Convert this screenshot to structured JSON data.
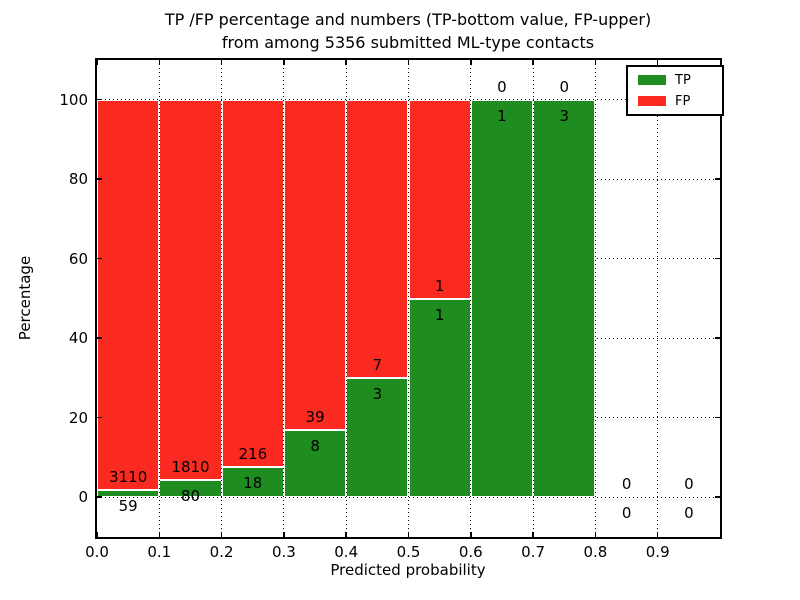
{
  "title": {
    "line1": "TP /FP percentage and numbers (TP-bottom value, FP-upper)",
    "line2": "from among 5356 submitted ML-type contacts"
  },
  "chart_data": {
    "type": "bar",
    "stacked": true,
    "title": "TP /FP percentage and numbers (TP-bottom value, FP-upper) from among 5356 submitted ML-type contacts",
    "xlabel": "Predicted probability",
    "ylabel": "Percentage",
    "xlim": [
      0.0,
      1.0
    ],
    "ylim": [
      -10,
      110
    ],
    "x_tick_labels": [
      "0.0",
      "0.1",
      "0.2",
      "0.3",
      "0.4",
      "0.5",
      "0.6",
      "0.7",
      "0.8",
      "0.9"
    ],
    "x_tick_values": [
      0.0,
      0.1,
      0.2,
      0.3,
      0.4,
      0.5,
      0.6,
      0.7,
      0.8,
      0.9
    ],
    "y_tick_values": [
      0,
      20,
      40,
      60,
      80,
      100
    ],
    "grid": "dotted",
    "legend_position": "upper right",
    "total_contacts": 5356,
    "series_note": "bars show TP percentage (green, bottom) vs FP percentage (red, top) per predicted-probability bin; labels are raw counts (TP bottom value, FP upper)",
    "bins": [
      {
        "range": [
          0.0,
          0.1
        ],
        "tp": 59,
        "fp": 3110,
        "tp_pct": 1.86
      },
      {
        "range": [
          0.1,
          0.2
        ],
        "tp": 80,
        "fp": 1810,
        "tp_pct": 4.23
      },
      {
        "range": [
          0.2,
          0.3
        ],
        "tp": 18,
        "fp": 216,
        "tp_pct": 7.69
      },
      {
        "range": [
          0.3,
          0.4
        ],
        "tp": 8,
        "fp": 39,
        "tp_pct": 17.02
      },
      {
        "range": [
          0.4,
          0.5
        ],
        "tp": 3,
        "fp": 7,
        "tp_pct": 30.0
      },
      {
        "range": [
          0.5,
          0.6
        ],
        "tp": 1,
        "fp": 1,
        "tp_pct": 50.0
      },
      {
        "range": [
          0.6,
          0.7
        ],
        "tp": 1,
        "fp": 0,
        "tp_pct": 100.0
      },
      {
        "range": [
          0.7,
          0.8
        ],
        "tp": 3,
        "fp": 0,
        "tp_pct": 100.0
      },
      {
        "range": [
          0.8,
          0.9
        ],
        "tp": 0,
        "fp": 0,
        "tp_pct": 0.0
      },
      {
        "range": [
          0.9,
          1.0
        ],
        "tp": 0,
        "fp": 0,
        "tp_pct": 0.0
      }
    ],
    "legend": [
      {
        "label": "TP",
        "color": "#1e8c1e"
      },
      {
        "label": "FP",
        "color": "#fa2a20"
      }
    ],
    "colors": {
      "tp": "#1e8c1e",
      "fp": "#fa2a20",
      "bar_edge": "#ffffff",
      "text": "#000000",
      "background": "#ffffff"
    }
  }
}
